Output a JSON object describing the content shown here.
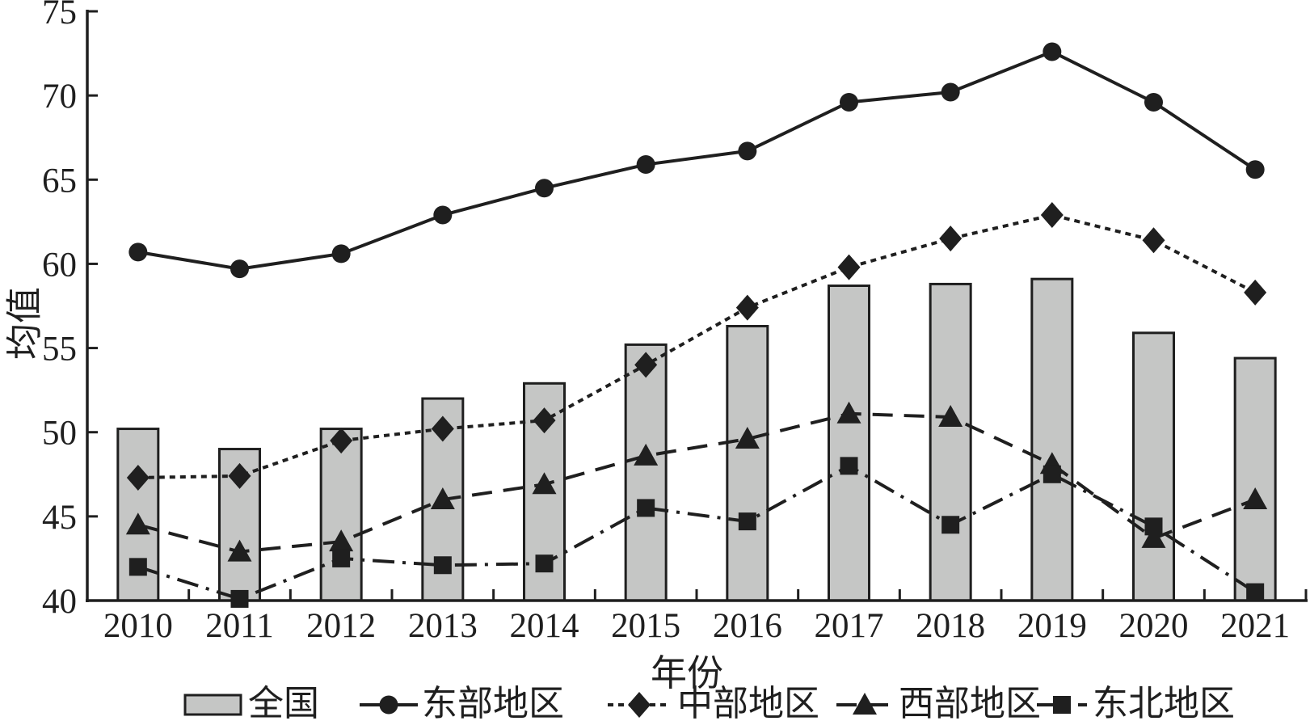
{
  "chart_data": {
    "type": "composite-bar-line",
    "title": "",
    "xlabel": "年份",
    "ylabel": "均值",
    "ylim": [
      40,
      75
    ],
    "yticks": [
      40,
      45,
      50,
      55,
      60,
      65,
      70,
      75
    ],
    "ytick_labels": [
      "40",
      "45",
      "50",
      "55",
      "60",
      "65",
      "70",
      "75"
    ],
    "categories": [
      "2010",
      "2011",
      "2012",
      "2013",
      "2014",
      "2015",
      "2016",
      "2017",
      "2018",
      "2019",
      "2020",
      "2021"
    ],
    "grid": false,
    "legend_position": "bottom",
    "bar_series": {
      "name": "全国",
      "values": [
        50.2,
        49.0,
        50.2,
        52.0,
        52.9,
        55.2,
        56.3,
        58.7,
        58.8,
        59.1,
        55.9,
        54.4
      ]
    },
    "line_series": [
      {
        "name": "东部地区",
        "marker": "circle",
        "line": "solid",
        "values": [
          60.7,
          59.7,
          60.6,
          62.9,
          64.5,
          65.9,
          66.7,
          69.6,
          70.2,
          72.6,
          69.6,
          65.6
        ]
      },
      {
        "name": "中部地区",
        "marker": "diamond",
        "line": "dotted",
        "values": [
          47.3,
          47.4,
          49.5,
          50.2,
          50.7,
          54.0,
          57.4,
          59.8,
          61.5,
          62.9,
          61.4,
          58.3
        ]
      },
      {
        "name": "西部地区",
        "marker": "triangle",
        "line": "dashed",
        "values": [
          44.5,
          42.9,
          43.5,
          46.0,
          46.9,
          48.6,
          49.6,
          51.1,
          50.9,
          48.1,
          43.7,
          46.0
        ]
      },
      {
        "name": "东北地区",
        "marker": "square",
        "line": "dashdot",
        "values": [
          42.0,
          40.1,
          42.5,
          42.1,
          42.2,
          45.5,
          44.7,
          48.0,
          44.5,
          47.5,
          44.4,
          40.5
        ]
      }
    ],
    "legend": {
      "items": [
        {
          "label": "全国",
          "swatch": "bar"
        },
        {
          "label": "东部地区",
          "swatch": "line",
          "marker": "circle",
          "line": "solid"
        },
        {
          "label": "中部地区",
          "swatch": "line",
          "marker": "diamond",
          "line": "dotted"
        },
        {
          "label": "西部地区",
          "swatch": "line",
          "marker": "triangle",
          "line": "dashed"
        },
        {
          "label": "东北地区",
          "swatch": "line",
          "marker": "square",
          "line": "dashdot"
        }
      ]
    },
    "colors": {
      "bar_fill": "#c5c6c5",
      "bar_stroke": "#1f1f1f",
      "line_color": "#1f1f1f",
      "text_color": "#1f1f1f",
      "background": "#ffffff"
    }
  }
}
